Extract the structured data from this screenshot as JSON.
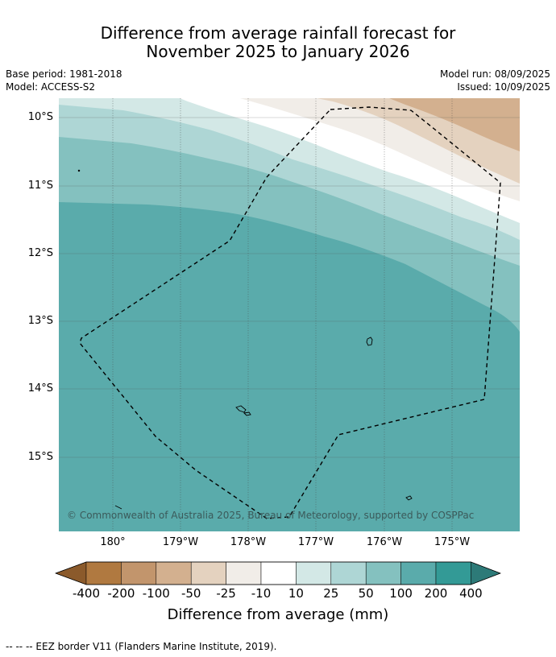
{
  "title": {
    "line1": "Difference from average rainfall forecast for",
    "line2": "November 2025 to January 2026"
  },
  "meta": {
    "base_period": "Base period: 1981-2018",
    "model": "Model: ACCESS-S2",
    "model_run": "Model run: 08/09/2025",
    "issued": "Issued: 10/09/2025"
  },
  "map": {
    "lat_labels": [
      "10°S",
      "11°S",
      "12°S",
      "13°S",
      "14°S",
      "15°S"
    ],
    "lon_labels": [
      "180°",
      "179°W",
      "178°W",
      "177°W",
      "176°W",
      "175°W"
    ],
    "copyright": "© Commonwealth of Australia 2025, Bureau of Meteorology, supported by COSPPac",
    "region_colors": {
      "-100": "#d3b08f",
      "-50": "#e4d2bf",
      "-25": "#f1ede8",
      "10": "#ffffff",
      "25": "#d3e8e6",
      "50": "#aed6d5",
      "100": "#84c1bf",
      "200": "#5aabab"
    }
  },
  "colorbar": {
    "labels": [
      "-400",
      "-200",
      "-100",
      "-50",
      "-25",
      "-10",
      "10",
      "25",
      "50",
      "100",
      "200",
      "400"
    ],
    "colors": [
      "#8b5a2b",
      "#b07940",
      "#c2956c",
      "#d3b08f",
      "#e4d2bf",
      "#f1ede8",
      "#ffffff",
      "#d3e8e6",
      "#aed6d5",
      "#84c1bf",
      "#5aabab",
      "#339a96",
      "#2d7a78"
    ],
    "title": "Difference from average (mm)"
  },
  "footer": "-- -- -- EEZ border V11 (Flanders Marine Institute, 2019)."
}
